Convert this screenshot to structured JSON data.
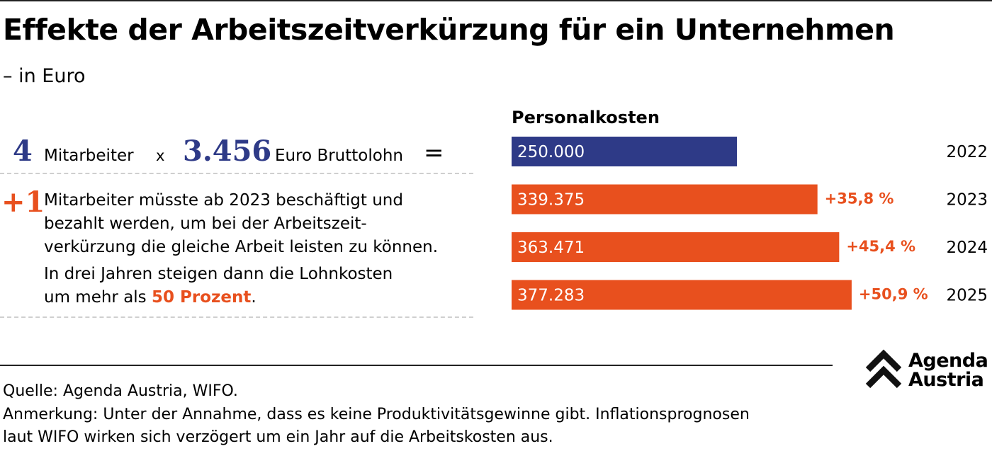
{
  "header": {
    "title": "Effekte der Arbeitszeitverkürzung für ein Unternehmen",
    "subtitle": "– in Euro"
  },
  "equation": {
    "employees": "4",
    "employees_label": "Mitarbeiter",
    "times": "x",
    "wage": "3.456",
    "wage_label": "Euro Bruttolohn",
    "equals": "="
  },
  "extra": {
    "plus": "+1",
    "line1": "Mitarbeiter müsste ab 2023 beschäftigt und",
    "line2": "bezahlt werden, um bei der Arbeitszeit-",
    "line3": "verkürzung die gleiche Arbeit leisten zu können.",
    "line4": "In drei Jahren steigen dann die Lohnkosten",
    "line5_pre": "um mehr als ",
    "line5_highlight": "50 Prozent",
    "line5_post": "."
  },
  "chart_data": {
    "type": "bar",
    "orientation": "horizontal",
    "title": "Personalkosten",
    "categories": [
      "2022",
      "2023",
      "2024",
      "2025"
    ],
    "values": [
      250000,
      339375,
      363471,
      377283
    ],
    "value_labels": [
      "250.000",
      "339.375",
      "363.471",
      "377.283"
    ],
    "change_labels": [
      "",
      "+35,8 %",
      "+45,4 %",
      "+50,9 %"
    ],
    "colors": [
      "#2e3a87",
      "#e8501e",
      "#e8501e",
      "#e8501e"
    ]
  },
  "footer": {
    "source": "Quelle: Agenda Austria, WIFO.",
    "note_line1": "Anmerkung: Unter der Annahme, dass es keine Produktivitätsgewinne gibt. Inflationsprognosen",
    "note_line2": "laut WIFO wirken sich verzögert um ein Jahr auf die Arbeitskosten aus."
  },
  "logo": {
    "line1": "Agenda",
    "line2": "Austria",
    "icon": "double-chevron-up-icon"
  },
  "colors": {
    "navy": "#2e3a87",
    "orange": "#e8501e"
  }
}
